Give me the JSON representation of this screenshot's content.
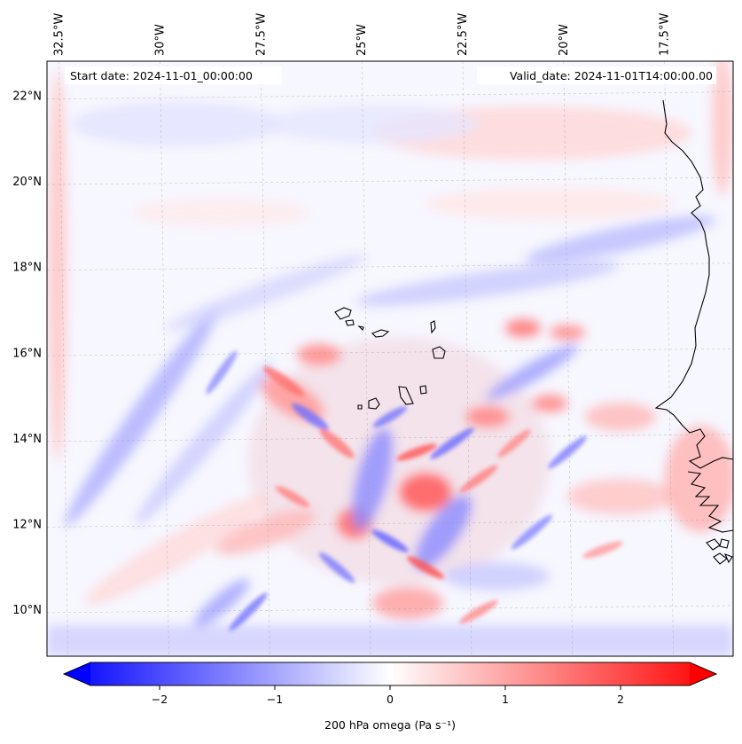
{
  "annotations": {
    "start_date": "Start date: 2024-11-01_00:00:00",
    "valid_date": "Valid_date: 2024-11-01T14:00:00.00"
  },
  "map": {
    "lon_range": [
      -32.8,
      -15.8
    ],
    "lat_range": [
      8.9,
      22.8
    ],
    "lon_ticks": [
      {
        "value": -32.5,
        "label": "32.5°W"
      },
      {
        "value": -30.0,
        "label": "30°W"
      },
      {
        "value": -27.5,
        "label": "27.5°W"
      },
      {
        "value": -25.0,
        "label": "25°W"
      },
      {
        "value": -22.5,
        "label": "22.5°W"
      },
      {
        "value": -20.0,
        "label": "20°W"
      },
      {
        "value": -17.5,
        "label": "17.5°W"
      }
    ],
    "lat_ticks": [
      {
        "value": 10,
        "label": "10°N"
      },
      {
        "value": 12,
        "label": "12°N"
      },
      {
        "value": 14,
        "label": "14°N"
      },
      {
        "value": 16,
        "label": "16°N"
      },
      {
        "value": 18,
        "label": "18°N"
      },
      {
        "value": 20,
        "label": "20°N"
      },
      {
        "value": 22,
        "label": "22°N"
      }
    ],
    "gridlines": true,
    "coastlines": true,
    "field": "200 hPa omega, filled contours, bwr colormap"
  },
  "colorbar": {
    "label": "200 hPa omega (Pa s⁻¹)",
    "range": [
      -2.6,
      2.6
    ],
    "ticks": [
      {
        "value": -2,
        "label": "−2"
      },
      {
        "value": -1,
        "label": "−1"
      },
      {
        "value": 0,
        "label": "0"
      },
      {
        "value": 1,
        "label": "1"
      },
      {
        "value": 2,
        "label": "2"
      }
    ],
    "colors": {
      "min": "#0000ff",
      "mid": "#ffffff",
      "max": "#ff0000"
    }
  }
}
